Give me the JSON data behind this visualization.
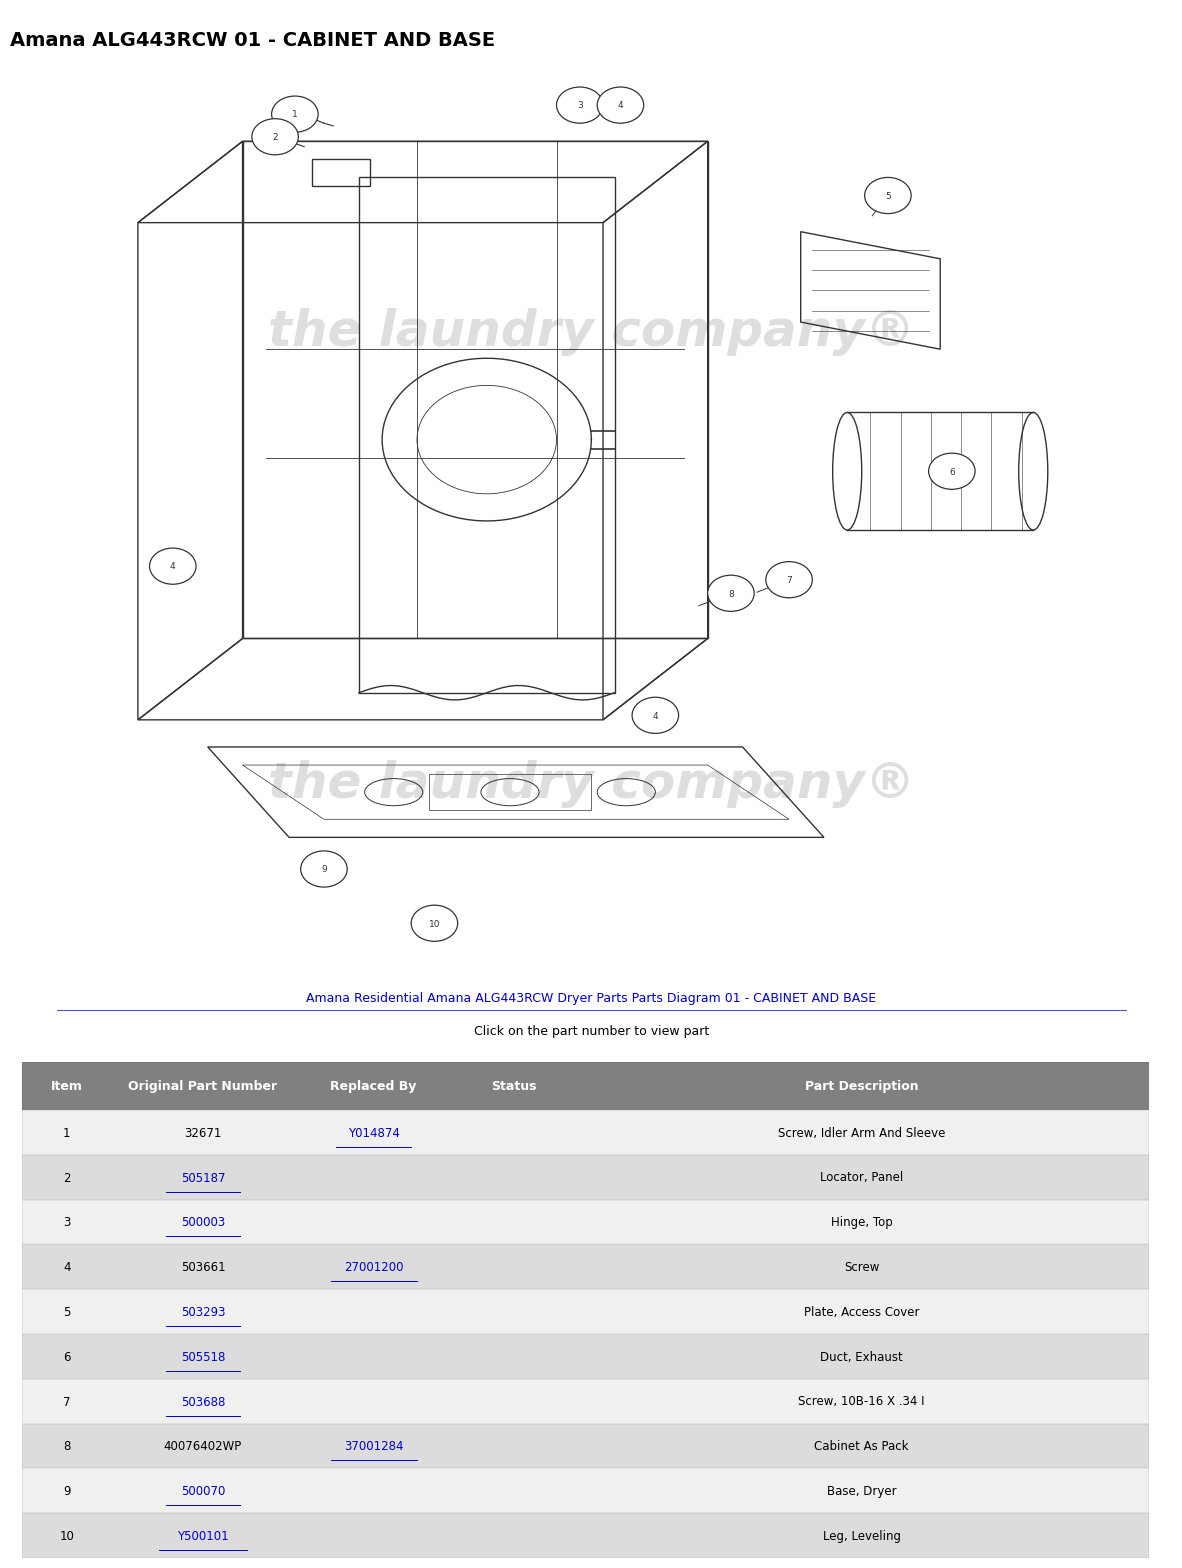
{
  "title": "Amana ALG443RCW 01 - CABINET AND BASE",
  "title_fontsize": 14,
  "caption_line1": "Amana Residential Amana ALG443RCW Dryer Parts Parts Diagram 01 - CABINET AND BASE",
  "caption_line2": "Click on the part number to view part",
  "table_header": [
    "Item",
    "Original Part Number",
    "Replaced By",
    "Status",
    "Part Description"
  ],
  "table_header_bg": "#808080",
  "table_header_fg": "#ffffff",
  "table_rows": [
    [
      "1",
      "32671",
      "Y014874",
      "",
      "Screw, Idler Arm And Sleeve"
    ],
    [
      "2",
      "505187",
      "",
      "",
      "Locator, Panel"
    ],
    [
      "3",
      "500003",
      "",
      "",
      "Hinge, Top"
    ],
    [
      "4",
      "503661",
      "27001200",
      "",
      "Screw"
    ],
    [
      "5",
      "503293",
      "",
      "",
      "Plate, Access Cover"
    ],
    [
      "6",
      "505518",
      "",
      "",
      "Duct, Exhaust"
    ],
    [
      "7",
      "503688",
      "",
      "",
      "Screw, 10B-16 X .34 I"
    ],
    [
      "8",
      "40076402WP",
      "37001284",
      "",
      "Cabinet As Pack"
    ],
    [
      "9",
      "500070",
      "",
      "",
      "Base, Dryer"
    ],
    [
      "10",
      "Y500101",
      "",
      "",
      "Leg, Leveling"
    ]
  ],
  "row_link_cols": {
    "0": [
      2
    ],
    "1": [
      1
    ],
    "2": [
      1
    ],
    "3": [
      2
    ],
    "4": [
      1
    ],
    "5": [
      1
    ],
    "6": [
      1
    ],
    "7": [
      2
    ],
    "8": [
      1
    ],
    "9": [
      1
    ]
  },
  "odd_row_bg": "#dcdcdc",
  "even_row_bg": "#f0f0f0",
  "link_color": "#0000cc",
  "text_color": "#000000",
  "bg_color": "#ffffff",
  "watermark_color": "#c8c8c8"
}
